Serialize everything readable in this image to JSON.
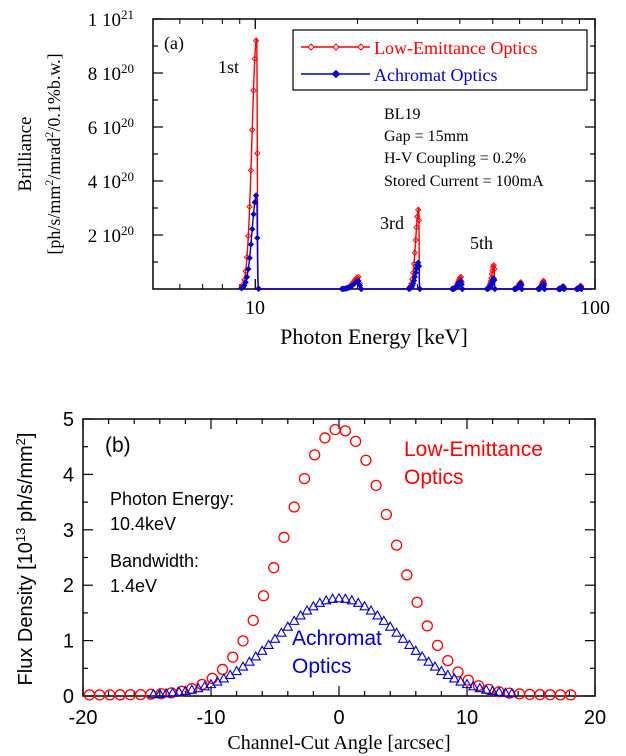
{
  "colors": {
    "low": "#ff0000",
    "achro": "#0000cc",
    "ink": "#000000"
  },
  "chart_data": [
    {
      "type": "line",
      "panel_label": "(a)",
      "xlabel": "Photon Energy [keV]",
      "ylabel_line1": "Brilliance",
      "ylabel_line2": "[ph/s/mm2/mrad2/0.1%b.w.]",
      "x_scale": "log",
      "xlim": [
        5,
        100
      ],
      "ylim": [
        0,
        1e+21
      ],
      "x_tick_labels": [
        "10",
        "100"
      ],
      "y_tick_labels": [
        "2 10",
        "4 10",
        "6 10",
        "8 10",
        "1 10"
      ],
      "y_tick_exps": [
        "20",
        "20",
        "20",
        "20",
        "21"
      ],
      "legend": [
        "Low-Emittance Optics",
        "Achromat Optics"
      ],
      "info_lines": [
        "BL19",
        "Gap = 15mm",
        "H-V Coupling = 0.2%",
        "Stored Current = 100mA"
      ],
      "harmonic_labels": [
        "1st",
        "3rd",
        "5th"
      ],
      "series": [
        {
          "name": "Low-Emittance Optics",
          "peaks": [
            {
              "center": 10.1,
              "height": 9.3e+20,
              "rise": 0.45,
              "fall": 0.05
            },
            {
              "center": 20.2,
              "height": 4.5e+19,
              "rise": 1.0,
              "fall": 0.12
            },
            {
              "center": 30.3,
              "height": 3e+20,
              "rise": 0.9,
              "fall": 0.08
            },
            {
              "center": 40.4,
              "height": 4.5e+19,
              "rise": 1.1,
              "fall": 0.12
            },
            {
              "center": 50.5,
              "height": 9e+19,
              "rise": 1.1,
              "fall": 0.1
            },
            {
              "center": 60.6,
              "height": 2.5e+19,
              "rise": 1.2,
              "fall": 0.12
            },
            {
              "center": 70.7,
              "height": 3e+19,
              "rise": 1.2,
              "fall": 0.12
            },
            {
              "center": 80.8,
              "height": 1e+19,
              "rise": 1.2,
              "fall": 0.12
            },
            {
              "center": 90.9,
              "height": 1.2e+19,
              "rise": 1.2,
              "fall": 0.12
            }
          ]
        },
        {
          "name": "Achromat Optics",
          "peaks": [
            {
              "center": 10.1,
              "height": 3.5e+20,
              "rise": 0.45,
              "fall": 0.05
            },
            {
              "center": 20.2,
              "height": 3e+19,
              "rise": 1.0,
              "fall": 0.12
            },
            {
              "center": 30.3,
              "height": 1e+20,
              "rise": 0.9,
              "fall": 0.08
            },
            {
              "center": 40.4,
              "height": 3e+19,
              "rise": 1.1,
              "fall": 0.12
            },
            {
              "center": 50.5,
              "height": 4e+19,
              "rise": 1.1,
              "fall": 0.1
            },
            {
              "center": 60.6,
              "height": 2e+19,
              "rise": 1.2,
              "fall": 0.12
            },
            {
              "center": 70.7,
              "height": 2e+19,
              "rise": 1.2,
              "fall": 0.12
            },
            {
              "center": 80.8,
              "height": 8e+18,
              "rise": 1.2,
              "fall": 0.12
            },
            {
              "center": 90.9,
              "height": 8e+18,
              "rise": 1.2,
              "fall": 0.12
            }
          ]
        }
      ]
    },
    {
      "type": "scatter",
      "panel_label": "(b)",
      "xlabel": "Channel-Cut Angle [arcsec]",
      "ylabel": "Flux Density [10^13 ph/s/mm2]",
      "xlim": [
        -20,
        20
      ],
      "ylim": [
        0,
        5
      ],
      "x_tick_labels": [
        "-20",
        "-10",
        "0",
        "10",
        "20"
      ],
      "y_tick_labels": [
        "0",
        "1",
        "2",
        "3",
        "4",
        "5"
      ],
      "info_lines": [
        "Photon Energy:",
        "10.4keV",
        "Bandwidth:",
        "1.4eV"
      ],
      "series_labels": [
        [
          "Low-Emittance",
          "Optics"
        ],
        [
          "Achromat",
          "Optics"
        ]
      ],
      "series": [
        {
          "name": "Low-Emittance Optics",
          "marker": "circle",
          "x_range": [
            -19.5,
            18.5
          ],
          "x_step": 0.8,
          "peak": 4.8,
          "center": 0.0,
          "sigma": 4.2
        },
        {
          "name": "Achromat Optics",
          "marker": "triangle",
          "x_range": [
            -14.5,
            13.5
          ],
          "x_step": 0.5,
          "peak": 1.75,
          "center": 0.0,
          "sigma": 4.8
        }
      ]
    }
  ]
}
